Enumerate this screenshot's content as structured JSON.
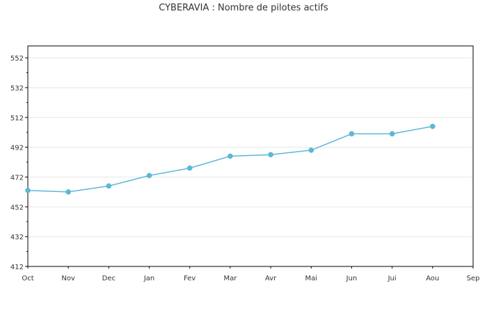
{
  "chart_data": {
    "type": "line",
    "title": "CYBERAVIA : Nombre de pilotes actifs",
    "xlabel": "",
    "ylabel": "",
    "categories": [
      "Oct",
      "Nov",
      "Dec",
      "Jan",
      "Fev",
      "Mar",
      "Avr",
      "Mai",
      "Jun",
      "Jui",
      "Aou",
      "Sep"
    ],
    "series": [
      {
        "values": [
          463,
          462,
          466,
          473,
          478,
          486,
          487,
          490,
          501,
          501,
          506,
          null
        ]
      }
    ],
    "ylim": [
      412,
      560
    ],
    "yticks": [
      412,
      432,
      452,
      472,
      492,
      512,
      532,
      552
    ],
    "grid": true,
    "legend": "none",
    "colors": {
      "line": "#5bb8d6",
      "marker": "#5bb8d6",
      "grid": "#e6e6e6",
      "axis": "#000000"
    }
  }
}
